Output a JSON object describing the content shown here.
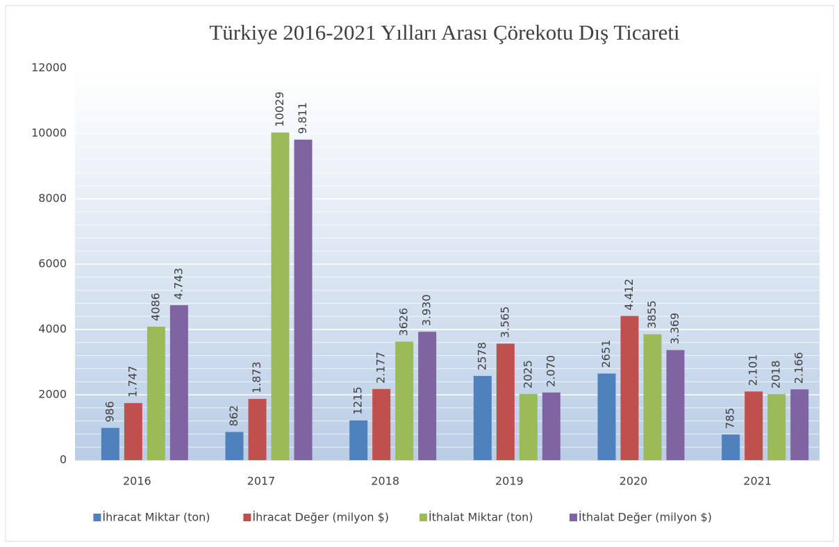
{
  "chart_data": {
    "type": "bar",
    "title": "Türkiye 2016-2021 Yılları Arası Çörekotu Dış Ticareti",
    "categories": [
      "2016",
      "2017",
      "2018",
      "2019",
      "2020",
      "2021"
    ],
    "series": [
      {
        "name": "İhracat Miktar (ton)",
        "color": "#4f81bd",
        "values": [
          986,
          862,
          1215,
          2578,
          2651,
          785
        ]
      },
      {
        "name": "İhracat Değer (milyon $)",
        "color": "#c0504d",
        "values": [
          1747,
          1873,
          2177,
          3565,
          4412,
          2101
        ],
        "value_labels": [
          "1.747",
          "1.873",
          "2.177",
          "3.565",
          "4.412",
          "2.101"
        ]
      },
      {
        "name": "İthalat Miktar (ton)",
        "color": "#9bbb59",
        "values": [
          4086,
          10029,
          3626,
          2025,
          3855,
          2018
        ]
      },
      {
        "name": "İthalat Değer (milyon $)",
        "color": "#8064a2",
        "values": [
          4743,
          9811,
          3930,
          2070,
          3369,
          2166
        ],
        "value_labels": [
          "4.743",
          "9.811",
          "3.930",
          "2.070",
          "3.369",
          "2.166"
        ]
      }
    ],
    "ylim": [
      0,
      12000
    ],
    "yticks": [
      0,
      2000,
      4000,
      6000,
      8000,
      10000,
      12000
    ],
    "grid": true,
    "legend": "bottom"
  }
}
